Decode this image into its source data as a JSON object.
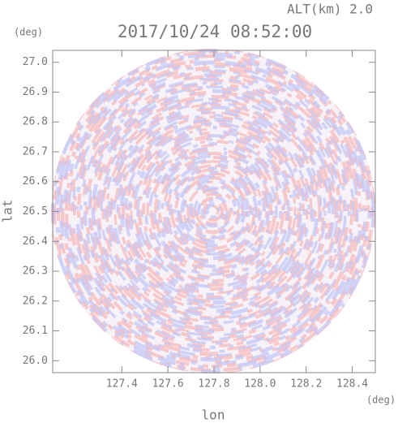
{
  "chart_data": {
    "type": "field",
    "title": "2017/10/24 08:52:00",
    "subtitle": "ALT(km) 2.0",
    "x_label": "lon",
    "y_label": "lat",
    "x_unit": "(deg)",
    "y_unit": "(deg)",
    "xlim": [
      127.1,
      128.5
    ],
    "ylim": [
      25.96,
      27.04
    ],
    "xticks": [
      127.4,
      127.6,
      127.8,
      {
        "value": 128,
        "label": "128.0"
      },
      128.2,
      128.4
    ],
    "yticks": [
      {
        "value": 26,
        "label": "26.0"
      },
      26.1,
      26.2,
      26.3,
      26.4,
      26.5,
      26.6,
      26.7,
      26.8,
      26.9,
      {
        "value": 27,
        "label": "27.0"
      }
    ]
  }
}
